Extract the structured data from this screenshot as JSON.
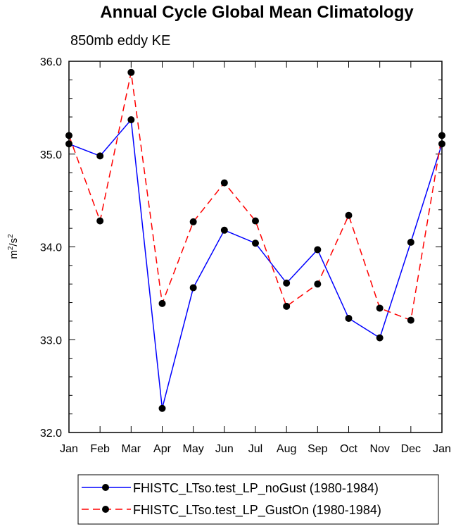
{
  "chart_data": {
    "type": "line",
    "title": "Annual Cycle Global Mean Climatology",
    "subtitle": "850mb eddy KE",
    "ylabel_base": "m",
    "ylabel_sup1": "2",
    "ylabel_mid": "/s",
    "ylabel_sup2": "2",
    "categories": [
      "Jan",
      "Feb",
      "Mar",
      "Apr",
      "May",
      "Jun",
      "Jul",
      "Aug",
      "Sep",
      "Oct",
      "Nov",
      "Dec",
      "Jan"
    ],
    "ylim": [
      32.0,
      36.0
    ],
    "yticks": [
      "32.0",
      "33.0",
      "34.0",
      "35.0",
      "36.0"
    ],
    "series": [
      {
        "name": "FHISTC_LTso.test_LP_noGust (1980-1984)",
        "color": "#0000ff",
        "dash": "solid",
        "values": [
          35.11,
          34.98,
          35.37,
          32.26,
          33.56,
          34.18,
          34.04,
          33.61,
          33.97,
          33.23,
          33.02,
          34.05,
          35.11
        ]
      },
      {
        "name": "FHISTC_LTso.test_LP_GustOn (1980-1984)",
        "color": "#ff0000",
        "dash": "dashed",
        "values": [
          35.2,
          34.28,
          35.88,
          33.39,
          34.27,
          34.69,
          34.28,
          33.36,
          33.6,
          34.34,
          33.34,
          33.21,
          35.2
        ]
      }
    ]
  }
}
